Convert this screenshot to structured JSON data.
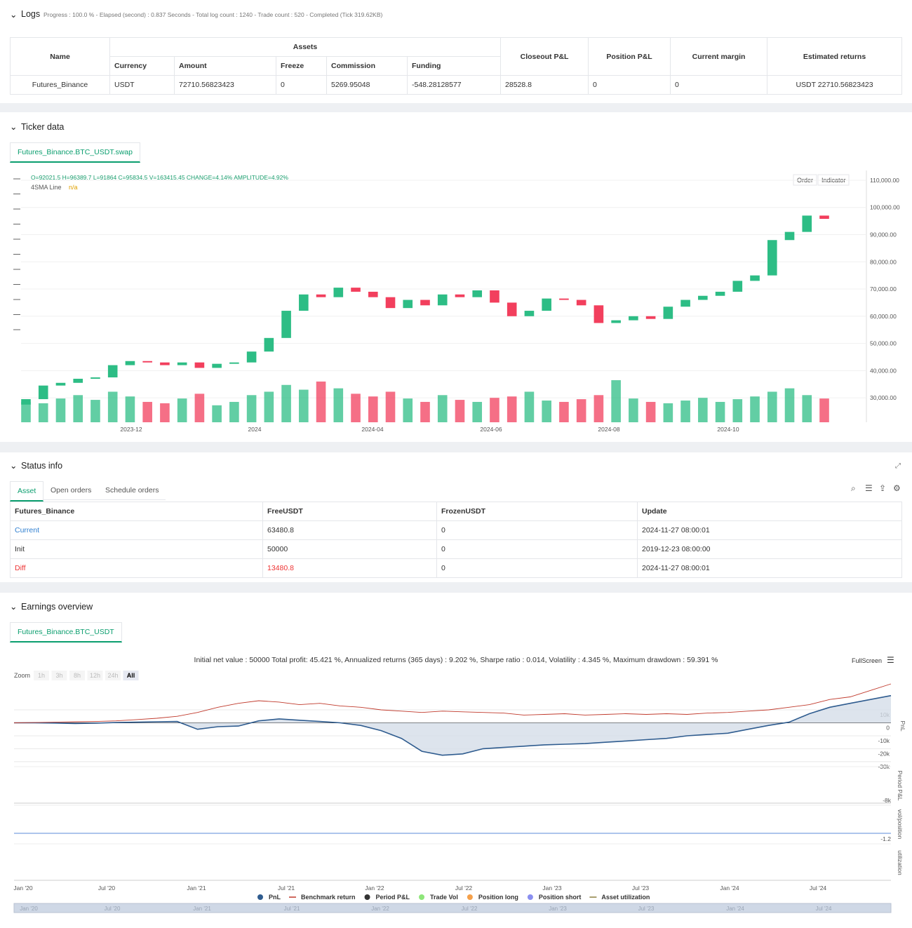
{
  "logs": {
    "title": "Logs",
    "progress": "Progress : 100.0 % - Elapsed (second) : 0.837 Seconds - Total log count : 1240 - Trade count : 520 - Completed (Tick 319.62KB)",
    "group": "Assets",
    "headers": [
      "Name",
      "Currency",
      "Amount",
      "Freeze",
      "Commission",
      "Funding",
      "Closeout P&L",
      "Position P&L",
      "Current margin",
      "Estimated returns"
    ],
    "rows": [
      [
        "Futures_Binance",
        "USDT",
        "72710.56823423",
        "0",
        "5269.95048",
        "-548.28128577",
        "28528.8",
        "0",
        "0",
        "USDT 22710.56823423"
      ]
    ]
  },
  "ticker": {
    "title": "Ticker data",
    "tab": "Futures_Binance.BTC_USDT.swap",
    "ohlc": "O=92021.5 H=96389.7 L=91864 C=95834.5 V=163415.45 CHANGE=4.14% AMPLITUDE=4.92%",
    "indicator": "4SMA Line",
    "indicator_value": "n/a",
    "buttons": [
      "Order",
      "Indicator"
    ],
    "chart_data": {
      "type": "candlestick",
      "up_color": "#2dbd85",
      "down_color": "#f23f5d",
      "open": [
        27500,
        29500,
        34500,
        35500,
        37000,
        37500,
        42000,
        43500,
        43000,
        42000,
        43000,
        41000,
        42500,
        43000,
        47000,
        52000,
        62000,
        68000,
        67000,
        70500,
        69000,
        67000,
        63000,
        66000,
        64000,
        68000,
        67000,
        69500,
        65000,
        60000,
        62000,
        66500,
        66000,
        64000,
        57500,
        58500,
        60000,
        59000,
        63500,
        66000,
        67500,
        69000,
        73000,
        75000,
        88000,
        91000,
        97000
      ],
      "close": [
        29500,
        34500,
        35500,
        37000,
        37500,
        42000,
        43500,
        43000,
        42000,
        43000,
        41000,
        42500,
        43000,
        47000,
        52000,
        62000,
        68000,
        67000,
        70500,
        69000,
        67000,
        63000,
        66000,
        64000,
        68000,
        67000,
        69500,
        65000,
        60000,
        62000,
        66500,
        66000,
        64000,
        57500,
        58500,
        60000,
        59000,
        63500,
        66000,
        67500,
        69000,
        73000,
        75000,
        88000,
        91000,
        97000,
        95800
      ],
      "volume": [
        30,
        28,
        35,
        40,
        33,
        45,
        38,
        30,
        28,
        35,
        42,
        25,
        30,
        40,
        45,
        55,
        48,
        60,
        50,
        42,
        38,
        45,
        35,
        30,
        40,
        33,
        30,
        36,
        38,
        45,
        32,
        30,
        34,
        40,
        62,
        35,
        30,
        28,
        32,
        36,
        30,
        34,
        38,
        45,
        50,
        40,
        35
      ],
      "ylim": [
        21000,
        113600
      ],
      "yticks": [
        {
          "value": 110000,
          "label": "110,000.00"
        },
        {
          "value": 100000,
          "label": "100,000.00"
        },
        {
          "value": 90000,
          "label": "90,000.00"
        },
        {
          "value": 80000,
          "label": "80,000.00"
        },
        {
          "value": 70000,
          "label": "70,000.00"
        },
        {
          "value": 60000,
          "label": "60,000.00"
        },
        {
          "value": 50000,
          "label": "50,000.00"
        },
        {
          "value": 40000,
          "label": "40,000.00"
        },
        {
          "value": 30000,
          "label": "30,000.00"
        }
      ],
      "x_labels": [
        "2023-12",
        "2024",
        "2024-04",
        "2024-06",
        "2024-08",
        "2024-10"
      ]
    }
  },
  "status": {
    "title": "Status info",
    "tabs": [
      "Asset",
      "Open orders",
      "Schedule orders"
    ],
    "headers": [
      "Futures_Binance",
      "FreeUSDT",
      "FrozenUSDT",
      "Update"
    ],
    "rows": [
      [
        "Current",
        "63480.8",
        "0",
        "2024-11-27 08:00:01"
      ],
      [
        "Init",
        "50000",
        "0",
        "2019-12-23 08:00:00"
      ],
      [
        "Diff",
        "13480.8",
        "0",
        "2024-11-27 08:00:01"
      ]
    ]
  },
  "earnings": {
    "title": "Earnings overview",
    "tab": "Futures_Binance.BTC_USDT",
    "summary": "Initial net value : 50000 Total profit: 45.421 %, Annualized returns (365 days) : 9.202 %, Sharpe ratio : 0.014, Volatility : 4.345 %, Maximum drawdown : 59.391 %",
    "fullscreen": "FullScreen",
    "zoom": "Zoom",
    "zoom_buttons": [
      "1h",
      "3h",
      "8h",
      "12h",
      "24h",
      "All"
    ],
    "chart_data": {
      "type": "line",
      "ylim": [
        -32200,
        24600
      ],
      "yticks": [
        {
          "value": 10000,
          "label": "10k"
        },
        0,
        {
          "value": -10000,
          "label": "-10k"
        },
        {
          "value": -20000,
          "label": "-20k"
        },
        {
          "value": -30000,
          "label": "-30k"
        }
      ],
      "x_labels": [
        "Jan '20",
        "Jul '20",
        "Jan '21",
        "Jul '21",
        "Jan '22",
        "Jul '22",
        "Jan '23",
        "Jul '23",
        "Jan '24",
        "Jul '24"
      ],
      "series": [
        {
          "name": "PnL",
          "color": "#2f5c8f",
          "values": [
            0,
            0,
            -200,
            -500,
            -300,
            200,
            500,
            800,
            1000,
            -5000,
            -3000,
            -2500,
            1500,
            3000,
            2000,
            1000,
            0,
            -2000,
            -6000,
            -12000,
            -22000,
            -25000,
            -24000,
            -20000,
            -19000,
            -18000,
            -17000,
            -16500,
            -16000,
            -15000,
            -14000,
            -13000,
            -12000,
            -10000,
            -9000,
            -8000,
            -5000,
            -2000,
            500,
            7000,
            12000,
            15000,
            18000,
            21000
          ]
        },
        {
          "name": "Benchmark return",
          "color": "#c0392b",
          "values": [
            0,
            200,
            500,
            800,
            1000,
            1500,
            2500,
            3500,
            5000,
            8000,
            12000,
            15000,
            17000,
            16000,
            14000,
            15000,
            13000,
            12000,
            10000,
            9000,
            8000,
            9000,
            8500,
            8000,
            7500,
            6000,
            6500,
            7000,
            6000,
            6500,
            7000,
            6500,
            7000,
            6500,
            7500,
            8000,
            9000,
            10000,
            12000,
            14000,
            18000,
            20000,
            25000,
            30000
          ]
        },
        {
          "name": "Period P&L",
          "color": "#333333"
        },
        {
          "name": "Trade Vol",
          "color": "#8ee67a"
        },
        {
          "name": "Position long",
          "color": "#f5a04a"
        },
        {
          "name": "Position short",
          "color": "#8a8ff0"
        },
        {
          "name": "Asset utilization",
          "color": "#8c7f3f"
        }
      ],
      "panels": [
        {
          "label": "Period P&L",
          "tick": {
            "value": -8000,
            "label": "-8k"
          }
        },
        {
          "label": "vol/position",
          "tick": {
            "value": -1.2,
            "label": "-1.2"
          }
        },
        {
          "label": "utilization"
        }
      ]
    }
  }
}
